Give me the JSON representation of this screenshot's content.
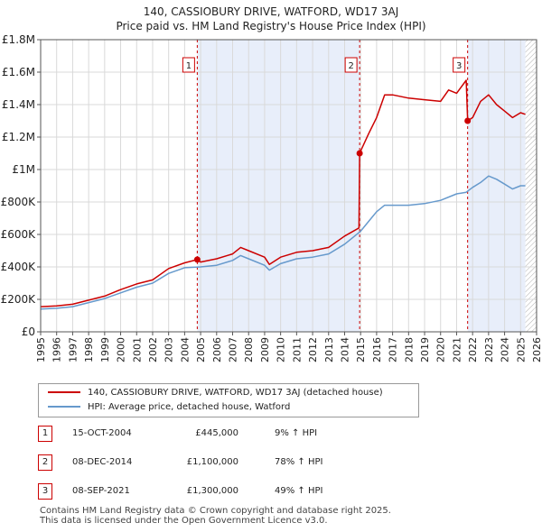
{
  "chart_data": {
    "type": "line",
    "title": "140, CASSIOBURY DRIVE, WATFORD, WD17 3AJ",
    "subtitle": "Price paid vs. HM Land Registry's House Price Index (HPI)",
    "xlim": [
      1995,
      2026
    ],
    "ylim": [
      0,
      1800000
    ],
    "x_ticks": [
      "1995",
      "1996",
      "1997",
      "1998",
      "1999",
      "2000",
      "2001",
      "2002",
      "2003",
      "2004",
      "2005",
      "2006",
      "2007",
      "2008",
      "2009",
      "2010",
      "2011",
      "2012",
      "2013",
      "2014",
      "2015",
      "2016",
      "2017",
      "2018",
      "2019",
      "2020",
      "2021",
      "2022",
      "2023",
      "2024",
      "2025",
      "2026"
    ],
    "y_ticks": [
      {
        "value": 0,
        "label": "£0"
      },
      {
        "value": 200000,
        "label": "£200K"
      },
      {
        "value": 400000,
        "label": "£400K"
      },
      {
        "value": 600000,
        "label": "£600K"
      },
      {
        "value": 800000,
        "label": "£800K"
      },
      {
        "value": 1000000,
        "label": "£1M"
      },
      {
        "value": 1200000,
        "label": "£1.2M"
      },
      {
        "value": 1400000,
        "label": "£1.4M"
      },
      {
        "value": 1600000,
        "label": "£1.6M"
      },
      {
        "value": 1800000,
        "label": "£1.8M"
      }
    ],
    "grid": true,
    "series": [
      {
        "name": "140, CASSIOBURY DRIVE, WATFORD, WD17 3AJ (detached house)",
        "color": "#cc0000",
        "x": [
          1995,
          1996,
          1997,
          1998,
          1999,
          2000,
          2001,
          2002,
          2003,
          2004,
          2004.79,
          2005,
          2006,
          2007,
          2007.5,
          2008,
          2009,
          2009.3,
          2010,
          2011,
          2012,
          2013,
          2014,
          2014.9,
          2014.94,
          2015.5,
          2016,
          2016.5,
          2017,
          2018,
          2019,
          2020,
          2020.5,
          2021,
          2021.6,
          2021.69,
          2022,
          2022.5,
          2023,
          2023.5,
          2024,
          2024.5,
          2025,
          2025.3
        ],
        "values": [
          155000,
          160000,
          170000,
          195000,
          220000,
          260000,
          295000,
          320000,
          390000,
          425000,
          445000,
          430000,
          450000,
          480000,
          520000,
          500000,
          460000,
          415000,
          460000,
          490000,
          500000,
          520000,
          590000,
          640000,
          1100000,
          1220000,
          1320000,
          1460000,
          1460000,
          1440000,
          1430000,
          1420000,
          1490000,
          1470000,
          1550000,
          1300000,
          1320000,
          1420000,
          1460000,
          1400000,
          1360000,
          1320000,
          1350000,
          1340000
        ]
      },
      {
        "name": "HPI: Average price, detached house, Watford",
        "color": "#6699cc",
        "x": [
          1995,
          1996,
          1997,
          1998,
          1999,
          2000,
          2001,
          2002,
          2003,
          2004,
          2005,
          2006,
          2007,
          2007.5,
          2008,
          2009,
          2009.3,
          2010,
          2011,
          2012,
          2013,
          2014,
          2015,
          2015.5,
          2016,
          2016.5,
          2017,
          2018,
          2019,
          2020,
          2021,
          2021.6,
          2022,
          2022.5,
          2023,
          2023.5,
          2024,
          2024.5,
          2025,
          2025.3
        ],
        "values": [
          140000,
          145000,
          155000,
          180000,
          205000,
          240000,
          275000,
          300000,
          360000,
          395000,
          400000,
          410000,
          440000,
          470000,
          450000,
          410000,
          380000,
          420000,
          450000,
          460000,
          480000,
          540000,
          620000,
          680000,
          740000,
          780000,
          780000,
          780000,
          790000,
          810000,
          850000,
          860000,
          890000,
          920000,
          960000,
          940000,
          910000,
          880000,
          900000,
          900000
        ]
      }
    ],
    "sales": [
      {
        "id": "1",
        "x": 2004.79,
        "value": 445000,
        "date": "15-OCT-2004",
        "price": "£445,000",
        "hpi": "9% ↑ HPI"
      },
      {
        "id": "2",
        "x": 2014.94,
        "value": 1100000,
        "date": "08-DEC-2014",
        "price": "£1,100,000",
        "hpi": "78% ↑ HPI"
      },
      {
        "id": "3",
        "x": 2021.69,
        "value": 1300000,
        "date": "08-SEP-2021",
        "price": "£1,300,000",
        "hpi": "49% ↑ HPI"
      }
    ],
    "shaded_spans": [
      [
        2004.79,
        2014.94
      ],
      [
        2021.69,
        2025.3
      ]
    ],
    "hatched_after": 2025.3,
    "legend": {
      "position": "below"
    }
  },
  "colors": {
    "price_line": "#cc0000",
    "hpi_line": "#6699cc",
    "span_fill": "#e8eefa",
    "grid": "#d9d9d9",
    "vline": "#cc0000"
  },
  "legend": {
    "price_label": "140, CASSIOBURY DRIVE, WATFORD, WD17 3AJ (detached house)",
    "hpi_label": "HPI: Average price, detached house, Watford"
  },
  "footer": {
    "line1": "Contains HM Land Registry data © Crown copyright and database right 2025.",
    "line2": "This data is licensed under the Open Government Licence v3.0."
  }
}
